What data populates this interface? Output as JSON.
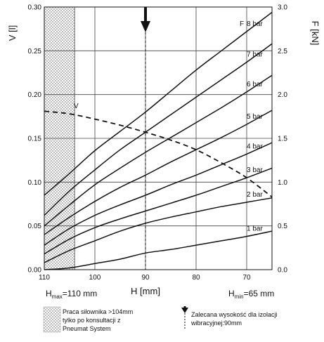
{
  "chart_data": {
    "type": "line",
    "title": "",
    "xlabel": "H [mm]",
    "ylabel_left": "V [l]",
    "ylabel_right": "F [kN]",
    "x_reversed": true,
    "xlim": [
      110,
      65
    ],
    "ylim_left": [
      0,
      0.3
    ],
    "ylim_right": [
      0,
      3.0
    ],
    "x_ticks": [
      "110",
      "100",
      "90",
      "80",
      "70"
    ],
    "y_left_ticks": [
      "0.00",
      "0.05",
      "0.10",
      "0.15",
      "0.20",
      "0.25",
      "0.30"
    ],
    "y_right_ticks": [
      "0.0",
      "0.5",
      "1.0",
      "1.5",
      "2.0",
      "2.5",
      "3.0"
    ],
    "grid": true,
    "force_series": [
      {
        "name": "1 bar",
        "x": [
          110,
          105,
          100,
          95,
          90,
          85,
          80,
          75,
          70,
          65
        ],
        "y": [
          0.0,
          0.02,
          0.07,
          0.12,
          0.19,
          0.23,
          0.28,
          0.33,
          0.38,
          0.44
        ]
      },
      {
        "name": "2 bar",
        "x": [
          110,
          105,
          100,
          95,
          90,
          85,
          80,
          75,
          70,
          65
        ],
        "y": [
          0.08,
          0.22,
          0.33,
          0.44,
          0.53,
          0.6,
          0.66,
          0.72,
          0.77,
          0.82
        ]
      },
      {
        "name": "3 bar",
        "x": [
          110,
          105,
          100,
          95,
          90,
          85,
          80,
          75,
          70,
          65
        ],
        "y": [
          0.18,
          0.35,
          0.48,
          0.58,
          0.67,
          0.76,
          0.85,
          0.95,
          1.05,
          1.16
        ]
      },
      {
        "name": "4 bar",
        "x": [
          110,
          105,
          100,
          95,
          90,
          85,
          80,
          75,
          70,
          65
        ],
        "y": [
          0.28,
          0.47,
          0.62,
          0.74,
          0.85,
          0.97,
          1.08,
          1.2,
          1.32,
          1.45
        ]
      },
      {
        "name": "5 bar",
        "x": [
          110,
          105,
          100,
          95,
          90,
          85,
          80,
          75,
          70,
          65
        ],
        "y": [
          0.4,
          0.6,
          0.78,
          0.94,
          1.08,
          1.23,
          1.37,
          1.51,
          1.66,
          1.82
        ]
      },
      {
        "name": "6 bar",
        "x": [
          110,
          105,
          100,
          95,
          90,
          85,
          80,
          75,
          70,
          65
        ],
        "y": [
          0.5,
          0.74,
          0.97,
          1.16,
          1.34,
          1.51,
          1.68,
          1.85,
          2.03,
          2.22
        ]
      },
      {
        "name": "7 bar",
        "x": [
          110,
          105,
          100,
          95,
          90,
          85,
          80,
          75,
          70,
          65
        ],
        "y": [
          0.62,
          0.9,
          1.14,
          1.37,
          1.57,
          1.77,
          1.97,
          2.17,
          2.37,
          2.58
        ]
      },
      {
        "name": "8 bar",
        "x": [
          110,
          105,
          100,
          95,
          90,
          85,
          80,
          75,
          70,
          65
        ],
        "y": [
          0.85,
          1.1,
          1.36,
          1.58,
          1.8,
          2.04,
          2.28,
          2.5,
          2.72,
          2.94
        ]
      }
    ],
    "series_label_prefix": "F",
    "volume_series": {
      "name": "V",
      "style": "dashed",
      "x": [
        110,
        105,
        100,
        95,
        90,
        85,
        80,
        75,
        70,
        65
      ],
      "y": [
        0.181,
        0.178,
        0.172,
        0.165,
        0.157,
        0.148,
        0.137,
        0.122,
        0.105,
        0.083
      ]
    },
    "recommended_height": {
      "h": 90,
      "style": "dashed-vertical-with-arrow"
    },
    "hatched_region": {
      "from": 110,
      "to": 104
    },
    "hmax_label": {
      "prefix": "H",
      "sub": "max",
      "value": "=110 mm"
    },
    "hmin_label": {
      "prefix": "H",
      "sub": "min",
      "value": "=65 mm"
    },
    "legend": {
      "hatch_text": [
        "Praca siłownika >104mm",
        "tylko po konsultacji z",
        "Pneumat System"
      ],
      "arrow_text": [
        "Zalecana wysokość dla izolacji",
        "wibracyjnej:90mm"
      ]
    }
  }
}
